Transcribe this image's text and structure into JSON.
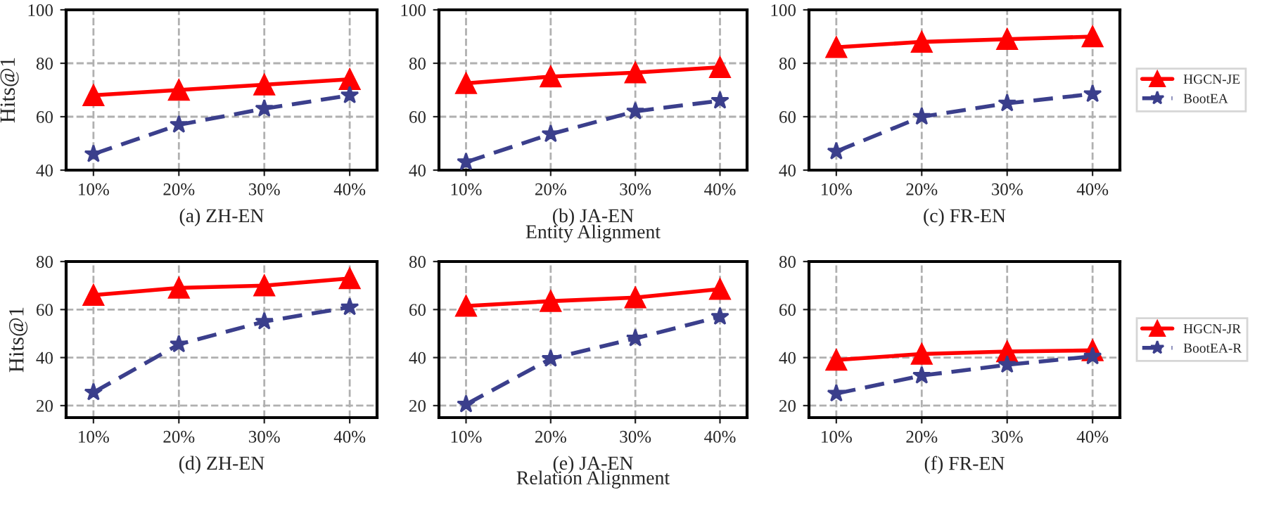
{
  "chart_data": [
    {
      "type": "line",
      "categories": [
        "10%",
        "20%",
        "30%",
        "40%"
      ],
      "xlabel": "(a) ZH-EN",
      "ylabel": "Hits@1",
      "ylim": [
        40,
        100
      ],
      "yticks": [
        40,
        60,
        80,
        100
      ],
      "grid": true,
      "legend": "right",
      "series": [
        {
          "name": "HGCN-JE",
          "color": "#ff0000",
          "marker": "triangle",
          "line_style": "solid",
          "values": [
            68,
            70,
            72,
            74
          ]
        },
        {
          "name": "BootEA",
          "color": "#3b3f8c",
          "marker": "star",
          "line_style": "dashed",
          "values": [
            46,
            57,
            63,
            68
          ]
        }
      ]
    },
    {
      "type": "line",
      "categories": [
        "10%",
        "20%",
        "30%",
        "40%"
      ],
      "xlabel": "(b) JA-EN",
      "annotations": [
        "Entity Alignment"
      ],
      "ylim": [
        40,
        100
      ],
      "yticks": [
        40,
        60,
        80,
        100
      ],
      "grid": true,
      "series": [
        {
          "color": "#ff0000",
          "marker": "triangle",
          "line_style": "solid",
          "values": [
            72.5,
            75,
            76.5,
            78.5
          ]
        },
        {
          "color": "#3b3f8c",
          "marker": "star",
          "line_style": "dashed",
          "values": [
            43,
            53.5,
            62,
            66
          ]
        }
      ]
    },
    {
      "type": "line",
      "categories": [
        "10%",
        "20%",
        "30%",
        "40%"
      ],
      "xlabel": "(c) FR-EN",
      "ylim": [
        40,
        100
      ],
      "yticks": [
        40,
        60,
        80,
        100
      ],
      "grid": true,
      "series": [
        {
          "color": "#ff0000",
          "marker": "triangle",
          "line_style": "solid",
          "values": [
            86,
            88,
            89,
            90
          ]
        },
        {
          "color": "#3b3f8c",
          "marker": "star",
          "line_style": "dashed",
          "values": [
            47,
            60,
            65,
            68.5
          ]
        }
      ]
    },
    {
      "type": "line",
      "categories": [
        "10%",
        "20%",
        "30%",
        "40%"
      ],
      "xlabel": "(d) ZH-EN",
      "ylabel": "Hits@1",
      "ylim": [
        15,
        80
      ],
      "yticks": [
        20,
        40,
        60,
        80
      ],
      "grid": true,
      "legend": "right",
      "series": [
        {
          "name": "HGCN-JR",
          "color": "#ff0000",
          "marker": "triangle",
          "line_style": "solid",
          "values": [
            66,
            69,
            70,
            73
          ]
        },
        {
          "name": "BootEA-R",
          "color": "#3b3f8c",
          "marker": "star",
          "line_style": "dashed",
          "values": [
            25.5,
            45.5,
            55,
            61
          ]
        }
      ]
    },
    {
      "type": "line",
      "categories": [
        "10%",
        "20%",
        "30%",
        "40%"
      ],
      "xlabel": "(e) JA-EN",
      "annotations": [
        "Relation Alignment"
      ],
      "ylim": [
        15,
        80
      ],
      "yticks": [
        20,
        40,
        60,
        80
      ],
      "grid": true,
      "series": [
        {
          "color": "#ff0000",
          "marker": "triangle",
          "line_style": "solid",
          "values": [
            61.5,
            63.5,
            65,
            68.5
          ]
        },
        {
          "color": "#3b3f8c",
          "marker": "star",
          "line_style": "dashed",
          "values": [
            20.5,
            39.5,
            48,
            57
          ]
        }
      ]
    },
    {
      "type": "line",
      "categories": [
        "10%",
        "20%",
        "30%",
        "40%"
      ],
      "xlabel": "(f) FR-EN",
      "ylim": [
        15,
        80
      ],
      "yticks": [
        20,
        40,
        60,
        80
      ],
      "grid": true,
      "series": [
        {
          "color": "#ff0000",
          "marker": "triangle",
          "line_style": "solid",
          "values": [
            39,
            41.5,
            42.5,
            43
          ]
        },
        {
          "color": "#3b3f8c",
          "marker": "star",
          "line_style": "dashed",
          "values": [
            25,
            32.5,
            37,
            40.5
          ]
        }
      ]
    }
  ]
}
